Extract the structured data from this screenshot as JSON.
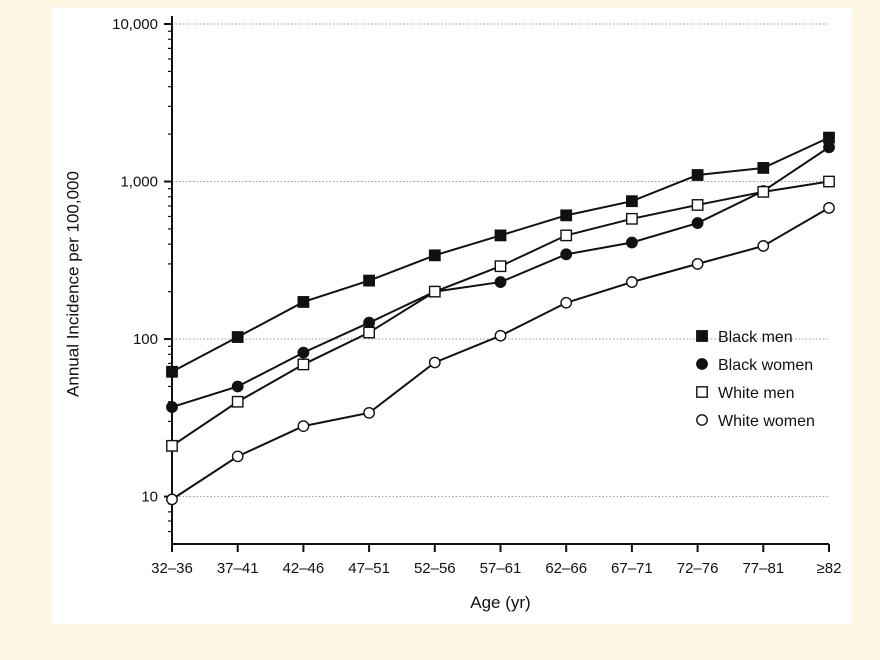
{
  "chart_data": {
    "type": "line",
    "x_categories": [
      "32–36",
      "37–41",
      "42–46",
      "47–51",
      "52–56",
      "57–61",
      "62–66",
      "67–71",
      "72–76",
      "77–81",
      "≥82"
    ],
    "y_ticks": [
      {
        "value": 10,
        "label": "10"
      },
      {
        "value": 100,
        "label": "100"
      },
      {
        "value": 1000,
        "label": "1,000"
      },
      {
        "value": 10000,
        "label": "10,000"
      }
    ],
    "ylim": [
      5,
      10000
    ],
    "y_scale": "log",
    "xlabel": "Age (yr)",
    "ylabel": "Annual Incidence per 100,000",
    "grid": "horizontal-dotted",
    "legend_position": "right",
    "series": [
      {
        "name": "Black men",
        "marker": "square-filled",
        "values": [
          62,
          103,
          172,
          235,
          340,
          455,
          610,
          750,
          1100,
          1220,
          1900
        ]
      },
      {
        "name": "Black women",
        "marker": "circle-filled",
        "values": [
          37,
          50,
          82,
          127,
          200,
          230,
          345,
          410,
          545,
          870,
          1650
        ]
      },
      {
        "name": "White men",
        "marker": "square-open",
        "values": [
          21,
          40,
          69,
          110,
          200,
          290,
          455,
          580,
          710,
          860,
          1000
        ]
      },
      {
        "name": "White women",
        "marker": "circle-open",
        "values": [
          9.6,
          18,
          28,
          34,
          71,
          105,
          170,
          230,
          300,
          390,
          680
        ]
      }
    ]
  }
}
